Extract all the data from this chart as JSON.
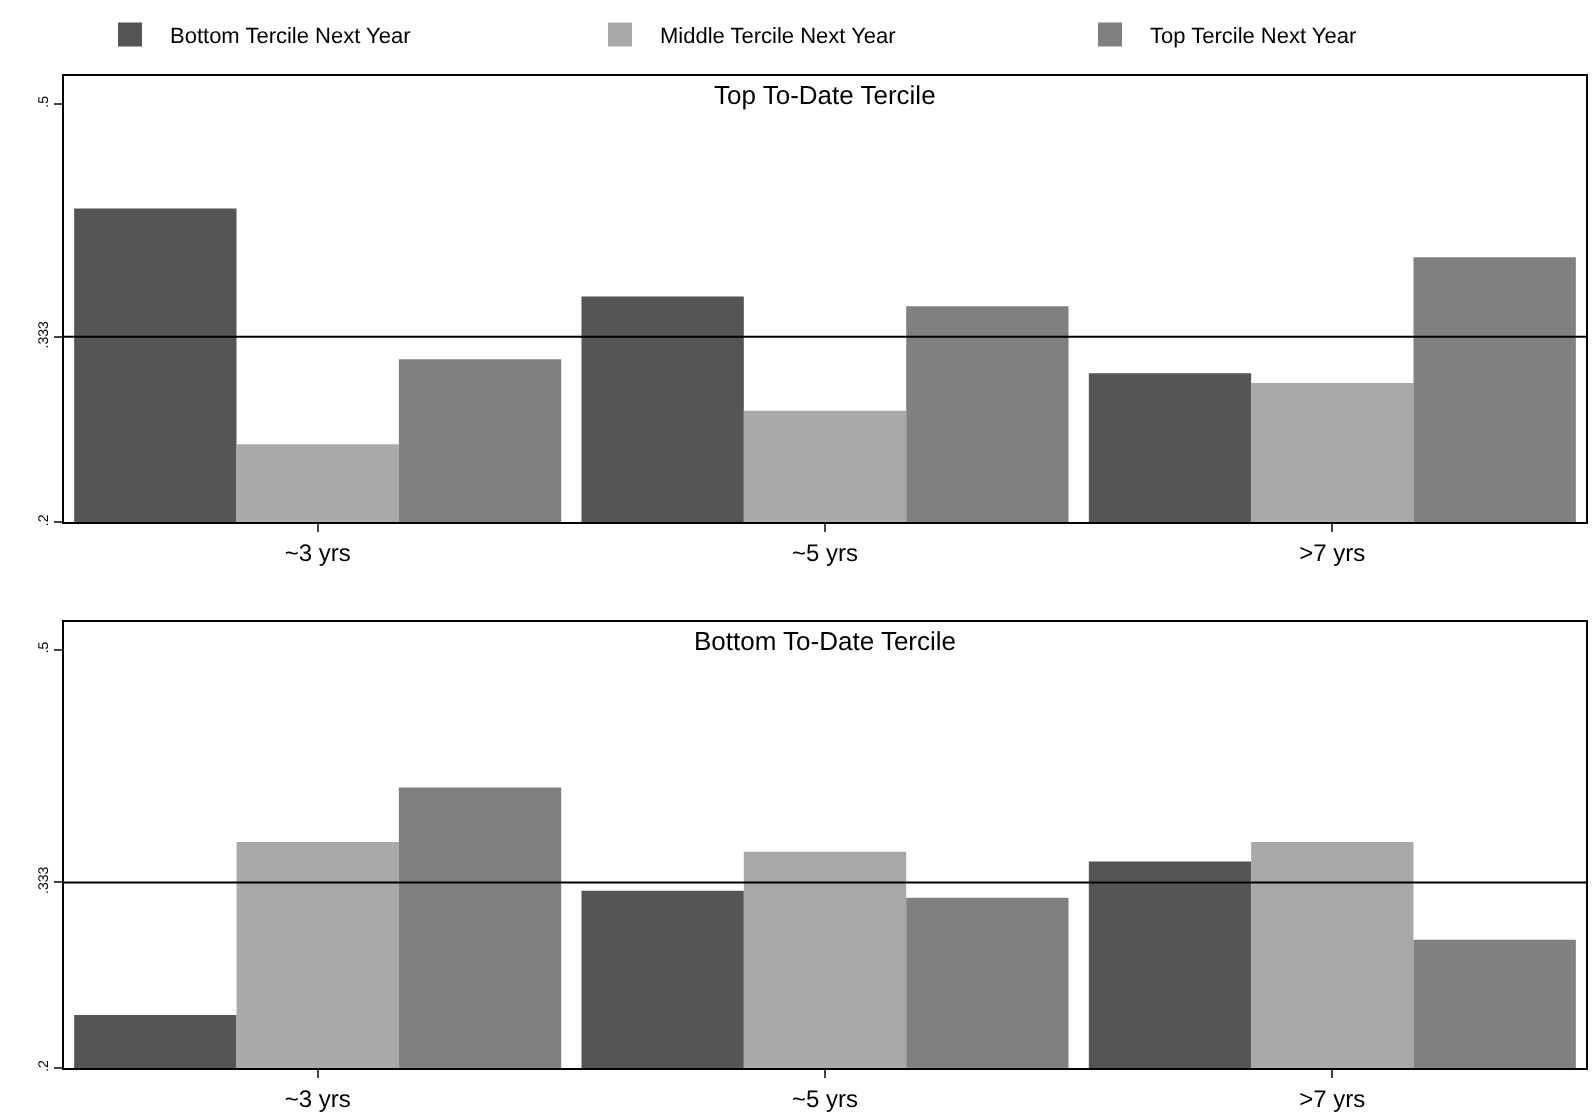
{
  "chart_data": [
    {
      "type": "bar",
      "title": "Top To-Date Tercile",
      "categories": [
        "~3 yrs",
        "~5 yrs",
        ">7 yrs"
      ],
      "series": [
        {
          "name": "Bottom Tercile Next Year",
          "color": "#555555",
          "values": [
            0.425,
            0.362,
            0.307
          ]
        },
        {
          "name": "Middle Tercile Next Year",
          "color": "#a9a9a9",
          "values": [
            0.256,
            0.28,
            0.3
          ]
        },
        {
          "name": "Top Tercile Next Year",
          "color": "#808080",
          "values": [
            0.317,
            0.355,
            0.39
          ]
        }
      ],
      "ylim": [
        0.2,
        0.52
      ],
      "yticks": [
        {
          "value": 0.2,
          "label": ".2"
        },
        {
          "value": 0.333,
          "label": ".333"
        },
        {
          "value": 0.5,
          "label": ".5"
        }
      ],
      "ref_lines": [
        {
          "axis": "y",
          "value": 0.333,
          "color": "#000000"
        }
      ],
      "grid": false,
      "legend": "top"
    },
    {
      "type": "bar",
      "title": "Bottom To-Date Tercile",
      "categories": [
        "~3 yrs",
        "~5 yrs",
        ">7 yrs"
      ],
      "series": [
        {
          "color": "#555555",
          "values": [
            0.238,
            0.327,
            0.348
          ]
        },
        {
          "color": "#a9a9a9",
          "values": [
            0.362,
            0.355,
            0.362
          ]
        },
        {
          "color": "#808080",
          "values": [
            0.401,
            0.322,
            0.292
          ]
        }
      ],
      "ylim": [
        0.2,
        0.52
      ],
      "yticks": [
        {
          "value": 0.2,
          "label": ".2"
        },
        {
          "value": 0.333,
          "label": ".333"
        },
        {
          "value": 0.5,
          "label": ".5"
        }
      ],
      "ref_lines": [
        {
          "axis": "y",
          "value": 0.333,
          "color": "#000000"
        }
      ],
      "grid": false
    }
  ]
}
